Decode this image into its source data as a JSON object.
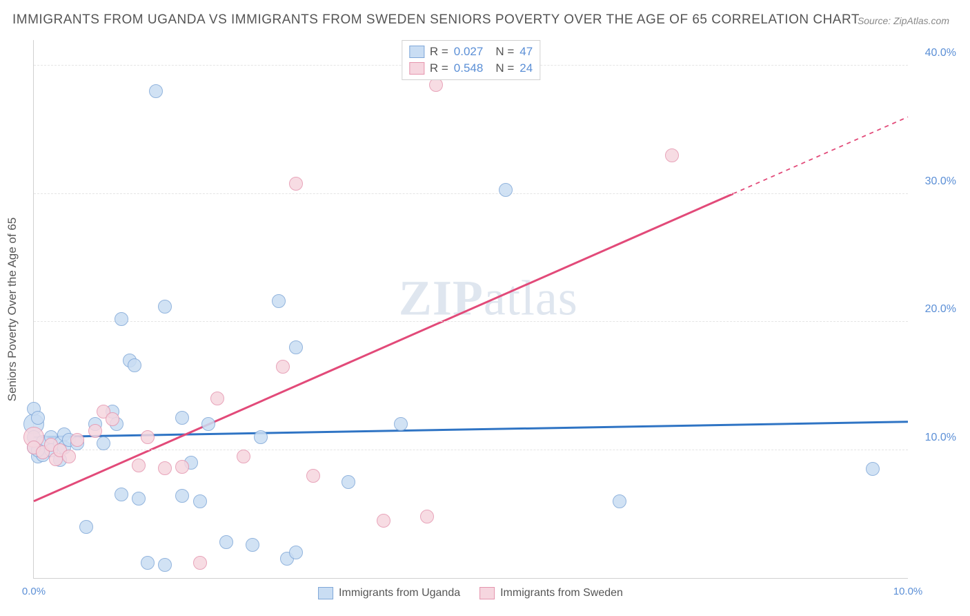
{
  "title": "IMMIGRANTS FROM UGANDA VS IMMIGRANTS FROM SWEDEN SENIORS POVERTY OVER THE AGE OF 65 CORRELATION CHART",
  "source": "Source: ZipAtlas.com",
  "watermark_a": "ZIP",
  "watermark_b": "atlas",
  "chart": {
    "type": "scatter",
    "y_axis_title": "Seniors Poverty Over the Age of 65",
    "xlim": [
      0,
      10
    ],
    "ylim": [
      0,
      42
    ],
    "x_ticks": [
      {
        "v": 0.0,
        "label": "0.0%"
      },
      {
        "v": 10.0,
        "label": "10.0%"
      }
    ],
    "y_ticks": [
      {
        "v": 10.0,
        "label": "10.0%"
      },
      {
        "v": 20.0,
        "label": "20.0%"
      },
      {
        "v": 30.0,
        "label": "30.0%"
      },
      {
        "v": 40.0,
        "label": "40.0%"
      }
    ],
    "grid_color": "#e4e4e4",
    "background": "#ffffff",
    "marker_radius": 10,
    "marker_stroke_width": 1.5,
    "series": [
      {
        "name": "Immigrants from Uganda",
        "fill": "#c9ddf3",
        "stroke": "#7fa7d8",
        "trend_color": "#2f74c4",
        "trend_width": 3,
        "R": "0.027",
        "N": "47",
        "trend": {
          "y_at_xmin": 11.0,
          "y_at_xmax": 12.2,
          "dash_from_x": null
        },
        "points": [
          [
            0.0,
            11.0
          ],
          [
            0.0,
            10.2
          ],
          [
            0.0,
            13.2
          ],
          [
            0.05,
            12.5
          ],
          [
            0.05,
            9.5
          ],
          [
            0.1,
            10.6
          ],
          [
            0.1,
            9.6
          ],
          [
            0.2,
            11.0
          ],
          [
            0.2,
            10.0
          ],
          [
            0.3,
            10.5
          ],
          [
            0.3,
            9.2
          ],
          [
            0.35,
            11.2
          ],
          [
            0.35,
            10.2
          ],
          [
            0.4,
            10.8
          ],
          [
            0.5,
            10.5
          ],
          [
            0.6,
            4.0
          ],
          [
            0.7,
            12.0
          ],
          [
            0.8,
            10.5
          ],
          [
            0.9,
            13.0
          ],
          [
            0.95,
            12.0
          ],
          [
            1.0,
            6.5
          ],
          [
            1.0,
            20.2
          ],
          [
            1.1,
            17.0
          ],
          [
            1.15,
            16.6
          ],
          [
            1.2,
            6.2
          ],
          [
            1.3,
            1.2
          ],
          [
            1.4,
            38.0
          ],
          [
            1.5,
            21.2
          ],
          [
            1.5,
            1.0
          ],
          [
            1.7,
            12.5
          ],
          [
            1.7,
            6.4
          ],
          [
            1.8,
            9.0
          ],
          [
            1.9,
            6.0
          ],
          [
            2.0,
            12.0
          ],
          [
            2.2,
            2.8
          ],
          [
            2.5,
            2.6
          ],
          [
            2.6,
            11.0
          ],
          [
            2.8,
            21.6
          ],
          [
            2.9,
            1.5
          ],
          [
            3.0,
            18.0
          ],
          [
            3.0,
            2.0
          ],
          [
            3.6,
            7.5
          ],
          [
            4.2,
            12.0
          ],
          [
            5.4,
            30.3
          ],
          [
            6.7,
            6.0
          ],
          [
            9.6,
            8.5
          ],
          [
            0.05,
            10.0
          ]
        ],
        "big_points": [
          [
            0.0,
            12.0
          ]
        ]
      },
      {
        "name": "Immigrants from Sweden",
        "fill": "#f6d6df",
        "stroke": "#e595ae",
        "trend_color": "#e24a79",
        "trend_width": 3,
        "R": "0.548",
        "N": "24",
        "trend": {
          "y_at_xmin": 6.0,
          "y_at_xmax": 36.0,
          "dash_from_x": 8.0
        },
        "points": [
          [
            0.0,
            10.2
          ],
          [
            0.1,
            9.8
          ],
          [
            0.2,
            10.4
          ],
          [
            0.25,
            9.3
          ],
          [
            0.3,
            10.0
          ],
          [
            0.4,
            9.5
          ],
          [
            0.5,
            10.8
          ],
          [
            0.7,
            11.5
          ],
          [
            0.8,
            13.0
          ],
          [
            0.9,
            12.4
          ],
          [
            1.2,
            8.8
          ],
          [
            1.3,
            11.0
          ],
          [
            1.5,
            8.6
          ],
          [
            1.7,
            8.7
          ],
          [
            1.9,
            1.2
          ],
          [
            2.1,
            14.0
          ],
          [
            2.4,
            9.5
          ],
          [
            2.85,
            16.5
          ],
          [
            3.0,
            30.8
          ],
          [
            3.2,
            8.0
          ],
          [
            4.0,
            4.5
          ],
          [
            4.5,
            4.8
          ],
          [
            4.6,
            38.5
          ],
          [
            7.3,
            33.0
          ]
        ],
        "big_points": [
          [
            0.0,
            11.0
          ]
        ]
      }
    ]
  }
}
